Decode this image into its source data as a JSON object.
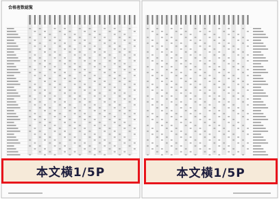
{
  "header": {
    "title": "合格者数総覧"
  },
  "labels": [
    "本文横1/5P",
    "本文横1/5P"
  ]
}
